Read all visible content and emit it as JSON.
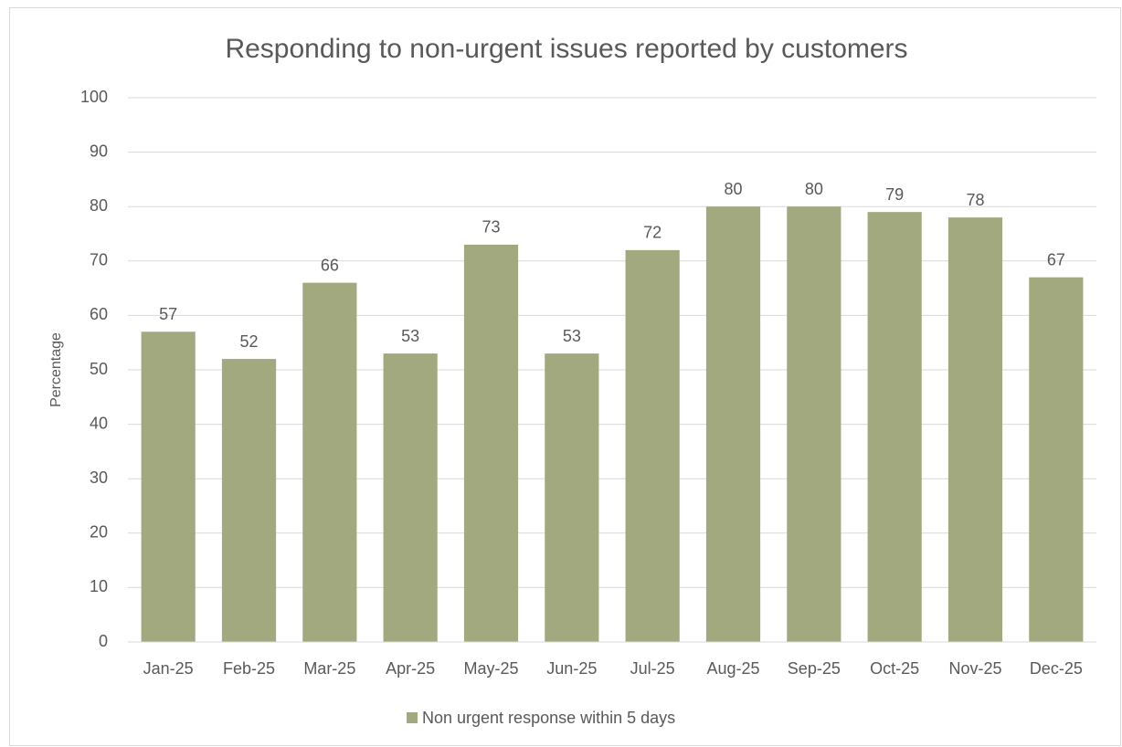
{
  "chart_data": {
    "type": "bar",
    "title": "Responding to non-urgent issues reported by customers",
    "y_label": "Percentage",
    "categories": [
      "Jan-25",
      "Feb-25",
      "Mar-25",
      "Apr-25",
      "May-25",
      "Jun-25",
      "Jul-25",
      "Aug-25",
      "Sep-25",
      "Oct-25",
      "Nov-25",
      "Dec-25"
    ],
    "series": [
      {
        "name": "Non urgent response within 5 days",
        "color": "#a3a97f",
        "values": [
          57,
          52,
          66,
          53,
          73,
          53,
          72,
          80,
          80,
          79,
          78,
          67
        ]
      }
    ],
    "ylim": [
      0,
      100
    ],
    "yticks": [
      0,
      10,
      20,
      30,
      40,
      50,
      60,
      70,
      80,
      90,
      100
    ],
    "grid": true,
    "legend": "bottom"
  }
}
